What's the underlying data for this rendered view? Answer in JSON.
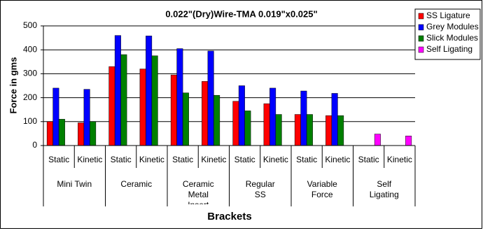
{
  "chart_data": {
    "type": "bar",
    "title": "0.022\"(Dry)Wire-TMA 0.019\"x0.025\"",
    "y_label": "Force in gms",
    "x_label": "Brackets",
    "categories": [
      "Static",
      "Kinetic",
      "Static",
      "Kinetic",
      "Static",
      "Kinetic",
      "Static",
      "Kinetic",
      "Static",
      "Kinetic",
      "Static",
      "Kinetic"
    ],
    "groups": [
      "Mini Twin",
      "Ceramic",
      "Ceramic Metal Insert",
      "Regular SS",
      "Variable Force",
      "Self Ligating"
    ],
    "series": [
      {
        "name": "SS  Ligature",
        "color": "#ff0000",
        "values": [
          100,
          95,
          330,
          320,
          295,
          268,
          185,
          175,
          130,
          125,
          null,
          null
        ]
      },
      {
        "name": "Grey Modules",
        "color": "#0000ff",
        "values": [
          240,
          235,
          460,
          458,
          405,
          395,
          250,
          240,
          228,
          218,
          null,
          null
        ]
      },
      {
        "name": "Slick Modules",
        "color": "#008000",
        "values": [
          110,
          100,
          380,
          375,
          220,
          210,
          145,
          130,
          130,
          125,
          null,
          null
        ]
      },
      {
        "name": "Self Ligating",
        "color": "#ff00ff",
        "values": [
          null,
          null,
          null,
          null,
          null,
          null,
          null,
          null,
          null,
          null,
          48,
          40
        ]
      }
    ],
    "ylim": [
      0,
      500
    ],
    "yticks": [
      0,
      100,
      200,
      300,
      400,
      500
    ],
    "grid": true,
    "legend": "right"
  }
}
